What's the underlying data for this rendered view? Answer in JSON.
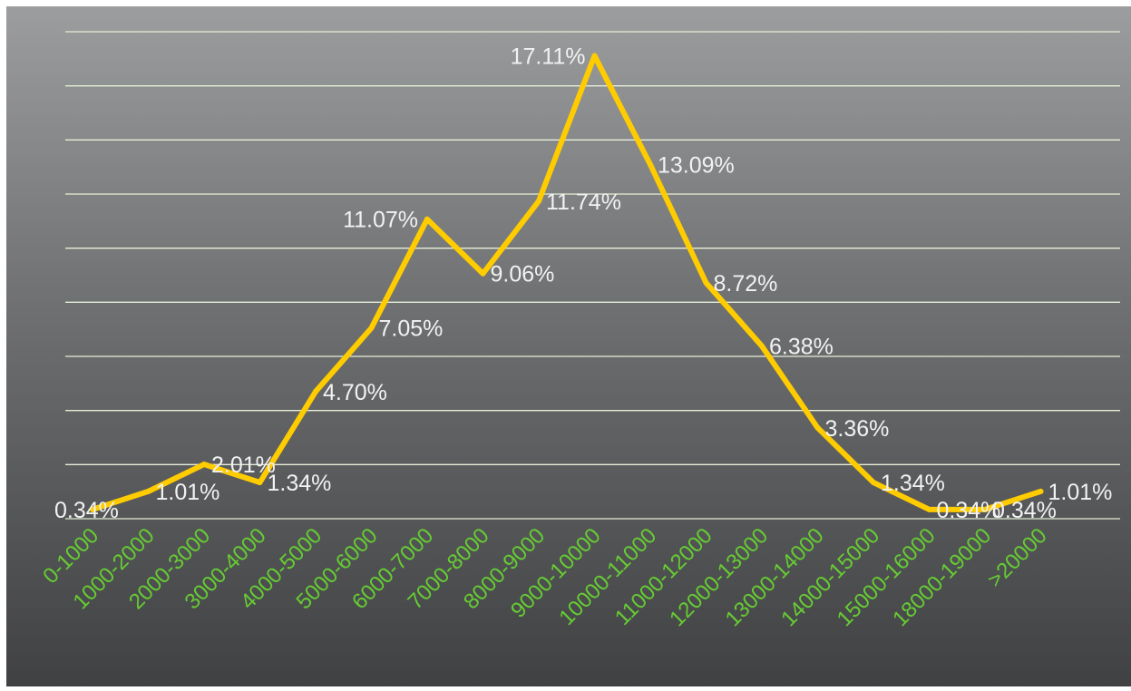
{
  "chart_data": {
    "type": "line",
    "title": "",
    "xlabel": "",
    "ylabel": "",
    "categories": [
      "0-1000",
      "1000-2000",
      "2000-3000",
      "3000-4000",
      "4000-5000",
      "5000-6000",
      "6000-7000",
      "7000-8000",
      "8000-9000",
      "9000-10000",
      "10000-11000",
      "11000-12000",
      "12000-13000",
      "13000-14000",
      "14000-15000",
      "15000-16000",
      "18000-19000",
      ">20000"
    ],
    "series": [
      {
        "values": [
          0.34,
          1.01,
          2.01,
          1.34,
          4.7,
          7.05,
          11.07,
          9.06,
          11.74,
          17.11,
          13.09,
          8.72,
          6.38,
          3.36,
          1.34,
          0.34,
          0.34,
          1.01
        ],
        "labels": [
          "0.34%",
          "1.01%",
          "2.01%",
          "1.34%",
          "4.70%",
          "7.05%",
          "11.07%",
          "9.06%",
          "11.74%",
          "17.11%",
          "13.09%",
          "8.72%",
          "6.38%",
          "3.36%",
          "1.34%",
          "0.34%",
          "0.34%",
          "1.01%"
        ],
        "color": "#ffcc00"
      }
    ],
    "ylim": [
      0,
      18
    ],
    "grid": true,
    "legend": "none",
    "colors": {
      "gridline": "#e4efd6",
      "tick_label": "#66cc33",
      "data_label": "#f2f2f2",
      "background_top": "#9c9d9f",
      "background_bottom": "#404143"
    }
  }
}
